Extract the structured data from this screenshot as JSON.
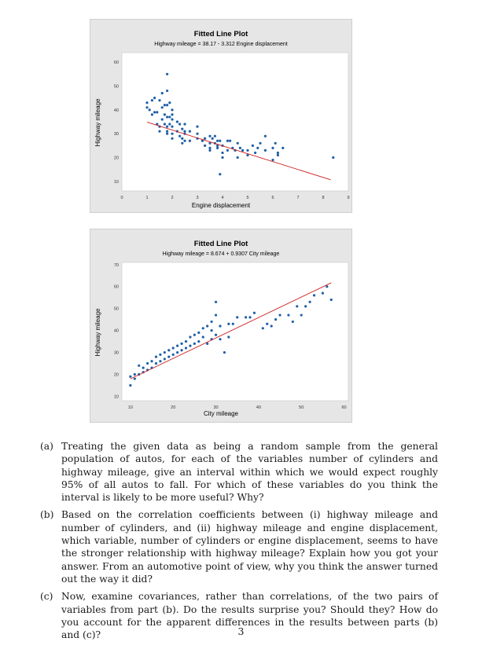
{
  "chart_data": [
    {
      "type": "scatter",
      "title": "Fitted Line Plot",
      "subtitle": "Highway mileage = 38.17 - 3.312 Engine displacement",
      "xlabel": "Engine displacement",
      "ylabel": "Highway mileage",
      "xlim": [
        0,
        9
      ],
      "ylim": [
        6,
        64
      ],
      "xticks": [
        0,
        1,
        2,
        3,
        4,
        5,
        6,
        7,
        8,
        9
      ],
      "yticks": [
        10,
        20,
        30,
        40,
        50,
        60
      ],
      "fit": {
        "intercept": 38.17,
        "slope": -3.312,
        "x_range": [
          1.0,
          8.3
        ]
      },
      "point_color": "#1f5fa6",
      "line_color": "#cc1f1f",
      "series": [
        {
          "x": [
            1.0,
            1.0,
            1.1,
            1.2,
            1.2,
            1.3,
            1.3,
            1.4,
            1.4,
            1.5,
            1.5,
            1.5,
            1.6,
            1.6,
            1.6,
            1.7,
            1.7,
            1.7,
            1.8,
            1.8,
            1.8,
            1.8,
            1.8,
            1.8,
            1.8,
            1.9,
            1.9,
            1.9,
            2.0,
            2.0,
            2.0,
            2.0,
            2.0,
            2.0,
            2.2,
            2.2,
            2.3,
            2.3,
            2.4,
            2.4,
            2.4,
            2.5,
            2.5,
            2.5,
            2.5,
            2.7,
            2.7,
            3.0,
            3.0,
            3.0,
            3.2,
            3.3,
            3.3,
            3.5,
            3.5,
            3.5,
            3.5,
            3.6,
            3.7,
            3.7,
            3.8,
            3.8,
            3.8,
            3.9,
            3.9,
            4.0,
            4.0,
            4.0,
            4.2,
            4.2,
            4.3,
            4.4,
            4.5,
            4.6,
            4.6,
            4.7,
            4.8,
            5.0,
            5.0,
            5.2,
            5.3,
            5.4,
            5.5,
            5.7,
            5.7,
            6.0,
            6.0,
            6.1,
            6.2,
            6.2,
            6.4,
            8.4
          ],
          "y": [
            41,
            43,
            40,
            44,
            38,
            45,
            39,
            39,
            34,
            33,
            31,
            44,
            47,
            41,
            36,
            42,
            38,
            34,
            42,
            37,
            33,
            31,
            30,
            48,
            55,
            43,
            37,
            34,
            40,
            36,
            33,
            30,
            38,
            28,
            35,
            31,
            34,
            29,
            32,
            28,
            26,
            31,
            34,
            30,
            27,
            31,
            27,
            30,
            28,
            33,
            27,
            28,
            25,
            29,
            26,
            24,
            23,
            28,
            26,
            29,
            24,
            27,
            25,
            27,
            13,
            22,
            25,
            20,
            27,
            23,
            27,
            24,
            23,
            26,
            20,
            24,
            23,
            23,
            21,
            25,
            22,
            24,
            26,
            29,
            23,
            24,
            19,
            26,
            21,
            22,
            24,
            20
          ]
        }
      ]
    },
    {
      "type": "scatter",
      "title": "Fitted Line Plot",
      "subtitle": "Highway mileage = 8.674 + 0.9307 City mileage",
      "xlabel": "City mileage",
      "ylabel": "Highway mileage",
      "xlim": [
        8,
        61
      ],
      "ylim": [
        8,
        71
      ],
      "xticks": [
        10,
        20,
        30,
        40,
        50,
        60
      ],
      "yticks": [
        10,
        20,
        30,
        40,
        50,
        60,
        70
      ],
      "fit": {
        "intercept": 8.674,
        "slope": 0.9307,
        "x_range": [
          10,
          57
        ]
      },
      "point_color": "#1f5fa6",
      "line_color": "#cc1f1f",
      "series": [
        {
          "x": [
            10,
            10,
            11,
            11,
            12,
            12,
            13,
            13,
            14,
            14,
            15,
            15,
            16,
            16,
            17,
            17,
            18,
            18,
            19,
            19,
            20,
            20,
            21,
            21,
            22,
            22,
            23,
            23,
            24,
            24,
            25,
            25,
            26,
            26,
            27,
            27,
            28,
            28,
            29,
            29,
            29,
            30,
            30,
            30,
            31,
            31,
            32,
            33,
            33,
            34,
            35,
            37,
            38,
            39,
            41,
            42,
            43,
            44,
            45,
            47,
            48,
            49,
            50,
            51,
            52,
            53,
            55,
            56,
            57
          ],
          "y": [
            15,
            19,
            18,
            20,
            20,
            24,
            21,
            23,
            22,
            25,
            23,
            26,
            25,
            28,
            26,
            29,
            27,
            30,
            28,
            31,
            29,
            32,
            30,
            33,
            31,
            34,
            32,
            35,
            33,
            37,
            34,
            38,
            35,
            39,
            37,
            41,
            34,
            42,
            40,
            44,
            36,
            38,
            47,
            53,
            36,
            42,
            30,
            43,
            37,
            43,
            46,
            46,
            46,
            48,
            41,
            43,
            42,
            45,
            47,
            47,
            44,
            51,
            47,
            51,
            53,
            56,
            57,
            60,
            54
          ]
        }
      ]
    }
  ],
  "questions": [
    {
      "label": "(a)",
      "text": "Treating the given data as being a random sample from the general population of autos, for each of the variables number of cylinders and highway mileage, give an interval within which we would expect roughly 95% of all autos to fall. For which of these variables do you think the interval is likely to be more useful? Why?"
    },
    {
      "label": "(b)",
      "text": "Based on the correlation coefficients between (i) highway mileage and number of cylinders, and (ii) highway mileage and engine displacement, which variable, number of cylinders or engine displacement, seems to have the stronger relationship with highway mileage? Explain how you got your answer. From an automotive point of view, why you think the answer turned out the way it did?"
    },
    {
      "label": "(c)",
      "text": "Now, examine covariances, rather than correlations, of the two pairs of variables from part (b). Do the results surprise you? Should they? How do you account for the apparent differences in the results between parts (b) and (c)?"
    }
  ],
  "page_number": "3"
}
